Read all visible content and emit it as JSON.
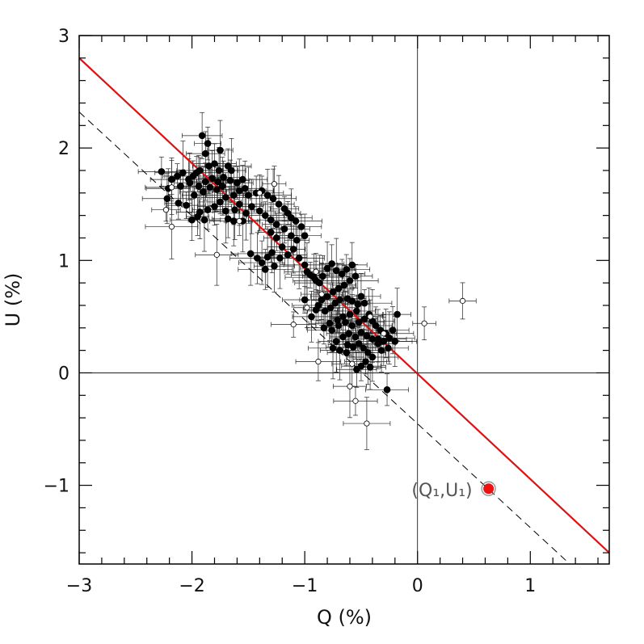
{
  "chart_data": {
    "type": "scatter",
    "xlabel": "Q (%)",
    "ylabel": "U (%)",
    "xlim": [
      -3.0,
      1.7
    ],
    "ylim": [
      -1.7,
      3.0
    ],
    "xticks": [
      -3,
      -2,
      -1,
      0,
      1
    ],
    "yticks": [
      -1,
      0,
      1,
      2,
      3
    ],
    "xtick_labels": [
      "−3",
      "−2",
      "−1",
      "0",
      "1"
    ],
    "ytick_labels": [
      "−1",
      "0",
      "1",
      "2",
      "3"
    ],
    "zero_lines": true,
    "colors": {
      "fit_line": "#dd1111",
      "special_point": "#ee1111",
      "points": "#000000"
    },
    "fit_line": {
      "style": "solid",
      "points": [
        [
          -3.0,
          2.8
        ],
        [
          1.7,
          -1.6
        ]
      ]
    },
    "reference_line": {
      "style": "dashed",
      "points": [
        [
          -3.0,
          2.32
        ],
        [
          1.35,
          -1.7
        ]
      ]
    },
    "special_point": {
      "x": 0.63,
      "y": -1.03,
      "label": "(Q₁,U₁)"
    },
    "series": [
      {
        "name": "filled",
        "marker": "filled-circle",
        "points": [
          [
            -1.91,
            2.11
          ],
          [
            -1.86,
            2.04
          ],
          [
            -1.88,
            1.95
          ],
          [
            -1.75,
            1.98
          ],
          [
            -1.8,
            1.86
          ],
          [
            -1.85,
            1.84
          ],
          [
            -1.93,
            1.8
          ],
          [
            -1.96,
            1.78
          ],
          [
            -2.27,
            1.79
          ],
          [
            -2.18,
            1.72
          ],
          [
            -2.13,
            1.75
          ],
          [
            -2.08,
            1.78
          ],
          [
            -2.03,
            1.72
          ],
          [
            -1.99,
            1.75
          ],
          [
            -1.76,
            1.8
          ],
          [
            -1.68,
            1.84
          ],
          [
            -1.65,
            1.8
          ],
          [
            -1.72,
            1.74
          ],
          [
            -1.77,
            1.7
          ],
          [
            -1.82,
            1.73
          ],
          [
            -1.88,
            1.7
          ],
          [
            -1.94,
            1.66
          ],
          [
            -2.02,
            1.69
          ],
          [
            -2.1,
            1.66
          ],
          [
            -2.21,
            1.64
          ],
          [
            -2.22,
            1.55
          ],
          [
            -2.12,
            1.51
          ],
          [
            -2.05,
            1.49
          ],
          [
            -1.98,
            1.58
          ],
          [
            -1.9,
            1.61
          ],
          [
            -1.84,
            1.65
          ],
          [
            -1.78,
            1.63
          ],
          [
            -1.73,
            1.66
          ],
          [
            -1.66,
            1.71
          ],
          [
            -1.6,
            1.69
          ],
          [
            -1.55,
            1.72
          ],
          [
            -1.53,
            1.64
          ],
          [
            -1.58,
            1.62
          ],
          [
            -1.63,
            1.58
          ],
          [
            -1.7,
            1.56
          ],
          [
            -1.75,
            1.52
          ],
          [
            -1.8,
            1.48
          ],
          [
            -1.86,
            1.45
          ],
          [
            -1.93,
            1.43
          ],
          [
            -1.89,
            1.36
          ],
          [
            -1.95,
            1.39
          ],
          [
            -2.0,
            1.36
          ],
          [
            -1.7,
            1.44
          ],
          [
            -1.62,
            1.45
          ],
          [
            -1.58,
            1.5
          ],
          [
            -1.5,
            1.58
          ],
          [
            -1.43,
            1.6
          ],
          [
            -1.38,
            1.62
          ],
          [
            -1.33,
            1.58
          ],
          [
            -1.28,
            1.55
          ],
          [
            -1.23,
            1.5
          ],
          [
            -1.18,
            1.46
          ],
          [
            -1.15,
            1.42
          ],
          [
            -1.12,
            1.38
          ],
          [
            -1.08,
            1.35
          ],
          [
            -1.03,
            1.3
          ],
          [
            -1.0,
            1.22
          ],
          [
            -1.07,
            1.18
          ],
          [
            -1.12,
            1.22
          ],
          [
            -1.18,
            1.28
          ],
          [
            -1.25,
            1.32
          ],
          [
            -1.3,
            1.36
          ],
          [
            -1.35,
            1.4
          ],
          [
            -1.4,
            1.44
          ],
          [
            -1.47,
            1.48
          ],
          [
            -1.52,
            1.42
          ],
          [
            -1.55,
            1.35
          ],
          [
            -1.63,
            1.35
          ],
          [
            -1.68,
            1.37
          ],
          [
            -1.3,
            1.25
          ],
          [
            -1.25,
            1.2
          ],
          [
            -1.2,
            1.12
          ],
          [
            -1.1,
            1.1
          ],
          [
            -1.15,
            1.05
          ],
          [
            -1.22,
            1.02
          ],
          [
            -1.29,
            1.07
          ],
          [
            -1.33,
            1.03
          ],
          [
            -1.38,
            0.98
          ],
          [
            -1.42,
            1.02
          ],
          [
            -1.48,
            1.06
          ],
          [
            -1.35,
            0.92
          ],
          [
            -1.27,
            0.95
          ],
          [
            -1.05,
            1.02
          ],
          [
            -1.0,
            0.96
          ],
          [
            -0.98,
            0.9
          ],
          [
            -0.95,
            0.87
          ],
          [
            -0.92,
            0.85
          ],
          [
            -0.9,
            0.82
          ],
          [
            -0.87,
            0.8
          ],
          [
            -0.84,
            0.86
          ],
          [
            -0.8,
            0.93
          ],
          [
            -0.76,
            0.97
          ],
          [
            -0.72,
            0.91
          ],
          [
            -0.67,
            0.88
          ],
          [
            -0.63,
            0.92
          ],
          [
            -0.58,
            0.96
          ],
          [
            -0.55,
            0.86
          ],
          [
            -0.6,
            0.82
          ],
          [
            -0.65,
            0.78
          ],
          [
            -0.7,
            0.75
          ],
          [
            -0.75,
            0.72
          ],
          [
            -0.8,
            0.68
          ],
          [
            -0.85,
            0.65
          ],
          [
            -0.88,
            0.6
          ],
          [
            -0.82,
            0.55
          ],
          [
            -0.77,
            0.58
          ],
          [
            -0.73,
            0.62
          ],
          [
            -0.69,
            0.65
          ],
          [
            -0.62,
            0.66
          ],
          [
            -0.58,
            0.64
          ],
          [
            -0.53,
            0.61
          ],
          [
            -0.5,
            0.68
          ],
          [
            -0.47,
            0.62
          ],
          [
            -0.54,
            0.55
          ],
          [
            -0.6,
            0.52
          ],
          [
            -0.66,
            0.5
          ],
          [
            -0.71,
            0.47
          ],
          [
            -0.78,
            0.44
          ],
          [
            -0.83,
            0.4
          ],
          [
            -0.76,
            0.38
          ],
          [
            -0.7,
            0.42
          ],
          [
            -0.64,
            0.45
          ],
          [
            -0.58,
            0.42
          ],
          [
            -0.52,
            0.45
          ],
          [
            -0.47,
            0.48
          ],
          [
            -0.43,
            0.52
          ],
          [
            -0.4,
            0.46
          ],
          [
            -0.37,
            0.42
          ],
          [
            -0.33,
            0.38
          ],
          [
            -0.28,
            0.35
          ],
          [
            -0.25,
            0.31
          ],
          [
            -0.22,
            0.38
          ],
          [
            -0.18,
            0.52
          ],
          [
            -0.3,
            0.28
          ],
          [
            -0.35,
            0.26
          ],
          [
            -0.4,
            0.3
          ],
          [
            -0.45,
            0.33
          ],
          [
            -0.5,
            0.36
          ],
          [
            -0.55,
            0.32
          ],
          [
            -0.61,
            0.35
          ],
          [
            -0.66,
            0.32
          ],
          [
            -0.72,
            0.28
          ],
          [
            -0.75,
            0.22
          ],
          [
            -0.69,
            0.2
          ],
          [
            -0.63,
            0.18
          ],
          [
            -0.57,
            0.23
          ],
          [
            -0.52,
            0.26
          ],
          [
            -0.48,
            0.22
          ],
          [
            -0.44,
            0.18
          ],
          [
            -0.4,
            0.14
          ],
          [
            -0.46,
            0.1
          ],
          [
            -0.5,
            0.06
          ],
          [
            -0.54,
            0.03
          ],
          [
            -0.42,
            0.05
          ],
          [
            -0.27,
            -0.15
          ],
          [
            -0.2,
            0.28
          ],
          [
            -0.26,
            0.22
          ],
          [
            -0.32,
            0.2
          ],
          [
            -0.62,
            0.25
          ],
          [
            -1.0,
            0.65
          ],
          [
            -0.9,
            0.56
          ],
          [
            -0.94,
            0.5
          ],
          [
            -0.35,
            0.3
          ]
        ]
      },
      {
        "name": "open",
        "marker": "open-circle",
        "points": [
          [
            -2.23,
            1.45
          ],
          [
            -2.18,
            1.3
          ],
          [
            -2.18,
            1.65
          ],
          [
            -1.78,
            1.05
          ],
          [
            -1.27,
            1.68
          ],
          [
            -1.1,
            0.43
          ],
          [
            -0.88,
            0.1
          ],
          [
            -0.6,
            -0.12
          ],
          [
            -0.55,
            -0.25
          ],
          [
            -0.45,
            -0.45
          ],
          [
            0.06,
            0.44
          ],
          [
            0.4,
            0.64
          ],
          [
            -0.42,
            0.5
          ],
          [
            -0.58,
            0.08
          ],
          [
            -0.85,
            0.7
          ],
          [
            -0.3,
            0.35
          ],
          [
            -1.58,
            1.35
          ],
          [
            -0.9,
            0.9
          ],
          [
            -1.4,
            1.6
          ],
          [
            -0.98,
            0.58
          ]
        ]
      }
    ]
  }
}
